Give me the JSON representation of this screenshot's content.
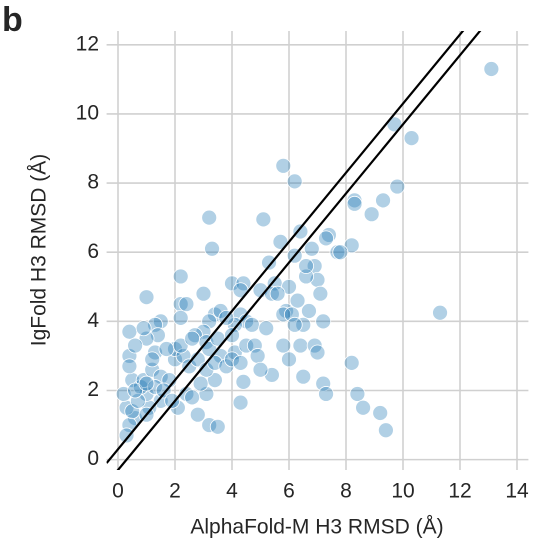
{
  "chart_data": {
    "type": "scatter",
    "panel_label": "b",
    "xlabel": "AlphaFold-M H3 RMSD (Å)",
    "ylabel": "IgFold H3 RMSD (Å)",
    "x": [
      13.1,
      9.7,
      10.3,
      9.8,
      9.3,
      8.9,
      8.3,
      8.3,
      8.2,
      11.3,
      5.8,
      6.2,
      3.2,
      5.1,
      3.3,
      5.7,
      6.8,
      7.4,
      7.3,
      7.7,
      6.9,
      7.0,
      7.1,
      6.6,
      5.3,
      6.2,
      6.4,
      2.2,
      4.0,
      4.4,
      4.3,
      5.5,
      5.0,
      5.4,
      6.0,
      6.3,
      5.9,
      5.8,
      6.1,
      1.0,
      2.2,
      2.4,
      3.0,
      3.4,
      3.6,
      4.3,
      4.5,
      4.7,
      4.1,
      3.8,
      3.2,
      3.0,
      2.2,
      1.5,
      1.3,
      1.4,
      1.0,
      0.4,
      0.9,
      2.7,
      3.1,
      3.2,
      3.6,
      4.1,
      4.5,
      4.8,
      5.2,
      6.7,
      6.5,
      7.2,
      6.2,
      5.8,
      6.4,
      6.9,
      7.0,
      6.0,
      6.5,
      7.2,
      7.3,
      8.2,
      8.4,
      8.6,
      9.2,
      9.4,
      5.4,
      4.4,
      4.3,
      3.4,
      3.1,
      3.2,
      3.5,
      2.8,
      2.4,
      2.1,
      1.5,
      1.1,
      1.0,
      0.6,
      0.4,
      0.3,
      0.2,
      0.5,
      0.8,
      0.9,
      1.2,
      1.5,
      1.8,
      2.0,
      2.0,
      2.3,
      2.5,
      2.8,
      3.1,
      3.4,
      3.8,
      4.0,
      4.3,
      4.9,
      5.0,
      0.4,
      0.6,
      1.3,
      1.7,
      2.2,
      2.6,
      0.5,
      0.7,
      1.3,
      1.6,
      1.9,
      0.3,
      0.4,
      1.2,
      3.5,
      4.0,
      2.9,
      0.6,
      1.0,
      7.8,
      5.6,
      6.6,
      1.0,
      2.6
    ],
    "values": [
      11.3,
      9.7,
      9.3,
      7.9,
      7.5,
      7.1,
      7.5,
      7.4,
      6.2,
      4.25,
      8.5,
      8.05,
      7.0,
      6.95,
      6.1,
      6.3,
      6.1,
      6.5,
      6.4,
      6.0,
      5.6,
      5.2,
      4.8,
      5.3,
      5.7,
      5.9,
      6.6,
      5.3,
      5.1,
      5.1,
      4.9,
      5.1,
      4.9,
      4.8,
      5.0,
      4.6,
      4.3,
      4.2,
      4.2,
      4.7,
      4.5,
      4.5,
      4.8,
      4.2,
      4.3,
      4.2,
      4.0,
      3.9,
      3.9,
      4.1,
      4.0,
      3.7,
      4.1,
      4.0,
      3.9,
      3.6,
      3.5,
      3.7,
      3.8,
      3.6,
      3.4,
      3.2,
      3.0,
      3.1,
      3.3,
      3.3,
      3.8,
      4.3,
      3.9,
      4.0,
      3.9,
      3.3,
      3.3,
      3.3,
      3.1,
      2.9,
      2.4,
      2.2,
      1.9,
      2.8,
      1.9,
      1.5,
      1.35,
      0.85,
      2.45,
      2.25,
      1.65,
      2.3,
      1.9,
      1.0,
      0.95,
      1.3,
      1.9,
      1.5,
      1.7,
      1.5,
      1.9,
      1.2,
      1.0,
      1.5,
      1.9,
      2.3,
      2.1,
      2.3,
      2.6,
      2.4,
      2.3,
      2.9,
      3.2,
      3.0,
      2.7,
      2.9,
      2.6,
      2.8,
      2.7,
      2.9,
      2.8,
      3.0,
      2.6,
      3.0,
      3.3,
      3.1,
      3.2,
      3.3,
      3.5,
      1.4,
      1.7,
      2.1,
      2.0,
      1.7,
      0.7,
      2.7,
      2.9,
      3.5,
      3.6,
      2.2,
      2.0,
      2.2,
      6.0,
      4.8,
      5.6,
      1.3,
      1.8
    ],
    "color": "#1f77b4",
    "reference_lines": [
      {
        "slope": 1,
        "intercept": 0.3
      },
      {
        "slope": 1,
        "intercept": -0.3
      }
    ],
    "xlim": [
      -0.4,
      14.4
    ],
    "ylim": [
      -0.3,
      12.4
    ],
    "xticks": [
      0,
      2,
      4,
      6,
      8,
      10,
      12,
      14
    ],
    "yticks": [
      0,
      2,
      4,
      6,
      8,
      10,
      12
    ],
    "grid": true
  }
}
